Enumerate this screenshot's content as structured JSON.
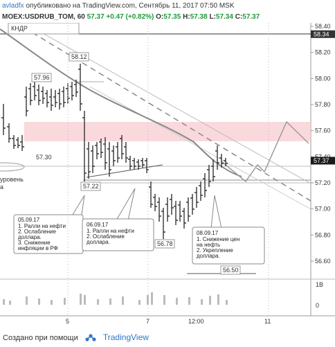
{
  "header": {
    "author": "avladfx",
    "published_text": "опубликовано на TradingView.com, Сентябрь 11, 2017 07:50 MSK",
    "symbol": "MOEX:USDRUB_TOM, 60",
    "last": "57.37",
    "change": "+0.47 (+0.82%)",
    "o_label": "O:",
    "o_value": "57.35",
    "h_label": "H:",
    "h_value": "57.38",
    "l_label": "L:",
    "l_value": "57.34",
    "c_label": "C:",
    "c_value": "57.37"
  },
  "price_axis": {
    "ticks": [
      "58.40",
      "58.20",
      "58.00",
      "57.80",
      "57.60",
      "57.40",
      "57.20",
      "57.00",
      "56.80",
      "56.60"
    ],
    "tick_values": [
      58.4,
      58.2,
      58.0,
      57.8,
      57.6,
      57.4,
      57.2,
      57.0,
      56.8,
      56.6
    ],
    "marker_top_label": "58.34",
    "marker_top_value": 58.34,
    "marker_last_label": "57.37",
    "marker_last_value": 57.37
  },
  "volume_axis": {
    "ticks": [
      "1B",
      "0"
    ]
  },
  "time_axis": {
    "ticks": [
      "5",
      "7",
      "12:00",
      "11"
    ]
  },
  "labels": {
    "kndr": "КНДР",
    "p5812": "58.12",
    "p5796": "57.96",
    "p5730": "57.30",
    "p5722": "57.22",
    "p5678": "56.78",
    "p5650": "56.50",
    "uroven1": "уровень",
    "uroven2": "а"
  },
  "notes": [
    {
      "title": "05.09.17",
      "lines": [
        "1. Ралли на нефти",
        "2. Ослабление",
        "доллара.",
        "3. Снижение",
        "инфляции в РФ"
      ]
    },
    {
      "title": "06.09.17",
      "lines": [
        "1. Ралли на нефти",
        "2. Ослабление",
        "доллара."
      ]
    },
    {
      "title": "08.09.17",
      "lines": [
        "1. Снижение цен",
        "на нефть",
        "2. Укрепление",
        "доллара."
      ]
    }
  ],
  "footer": {
    "created_text": "Создано при помощи",
    "brand": "TradingView"
  },
  "colors": {
    "up": "#3c3c3c",
    "accent": "#2f78c5",
    "green": "#1f9a3a",
    "zone": "#f6c9cd"
  },
  "icons": {
    "brand_logo": "tradingview-logo-icon"
  }
}
